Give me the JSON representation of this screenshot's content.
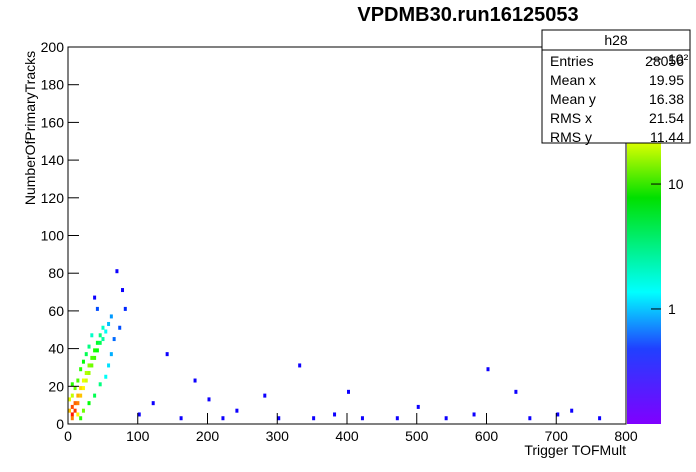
{
  "chart_data": {
    "type": "heatmap",
    "title": "VPDMB30.run16125053",
    "x_label": "Trigger TOFMult",
    "y_label": "NumberOfPrimaryTracks",
    "xlim": [
      0,
      800
    ],
    "xticks": [
      0,
      100,
      200,
      300,
      400,
      500,
      600,
      700,
      800
    ],
    "ylim": [
      0,
      200
    ],
    "yticks": [
      0,
      20,
      40,
      60,
      80,
      100,
      120,
      140,
      160,
      180,
      200
    ],
    "zlim": [
      0.12,
      125
    ],
    "zlog": true,
    "zticks": [
      1,
      10,
      {
        "value": 100,
        "label": "10²"
      }
    ],
    "x": [
      4,
      8,
      4,
      8,
      12,
      12,
      16,
      16,
      20,
      20,
      24,
      24,
      28,
      28,
      32,
      32,
      36,
      36,
      40,
      40,
      44,
      44,
      48,
      48,
      52,
      56,
      60,
      64,
      72,
      80,
      76,
      68,
      40,
      36,
      56,
      60,
      52,
      44,
      36,
      28,
      20,
      12,
      16,
      4,
      4,
      8,
      12,
      16,
      20,
      24,
      28,
      32,
      4,
      0,
      0,
      100,
      140,
      180,
      200,
      240,
      280,
      330,
      380,
      400,
      470,
      500,
      580,
      600,
      640,
      700,
      720,
      760,
      120,
      160,
      220,
      300,
      350,
      420,
      540,
      660
    ],
    "y": [
      4,
      6,
      8,
      10,
      10,
      14,
      14,
      18,
      18,
      22,
      22,
      26,
      26,
      30,
      30,
      34,
      34,
      38,
      38,
      42,
      42,
      46,
      44,
      50,
      48,
      52,
      56,
      44,
      50,
      60,
      70,
      80,
      60,
      66,
      30,
      36,
      24,
      20,
      14,
      10,
      6,
      4,
      2,
      14,
      20,
      18,
      22,
      28,
      32,
      36,
      40,
      46,
      2,
      6,
      12,
      4,
      36,
      22,
      12,
      6,
      14,
      30,
      4,
      16,
      2,
      8,
      4,
      28,
      16,
      4,
      6,
      2,
      10,
      2,
      2,
      2,
      2,
      2,
      2,
      2
    ],
    "values": [
      110,
      90,
      80,
      70,
      60,
      45,
      40,
      35,
      30,
      25,
      22,
      18,
      16,
      14,
      12,
      10,
      9,
      7,
      6,
      5,
      4,
      3,
      2.5,
      2,
      1.5,
      1,
      0.8,
      0.6,
      0.5,
      0.4,
      0.3,
      0.3,
      0.5,
      0.3,
      1.2,
      0.9,
      1.5,
      3,
      4,
      6,
      12,
      30,
      8,
      20,
      8,
      12,
      10,
      8,
      6,
      4,
      3,
      2,
      60,
      40,
      25,
      0.3,
      0.3,
      0.3,
      0.3,
      0.3,
      0.3,
      0.3,
      0.3,
      0.3,
      0.3,
      0.3,
      0.3,
      0.3,
      0.3,
      0.3,
      0.3,
      0.3,
      0.3,
      0.3,
      0.3,
      0.3,
      0.3,
      0.3,
      0.3,
      0.3
    ],
    "stats": {
      "title": "h28",
      "rows": [
        [
          "Entries",
          "28056"
        ],
        [
          "Mean x",
          "19.95"
        ],
        [
          "Mean y",
          "16.38"
        ],
        [
          "RMS x",
          "21.54"
        ],
        [
          "RMS y",
          "11.44"
        ]
      ]
    }
  }
}
